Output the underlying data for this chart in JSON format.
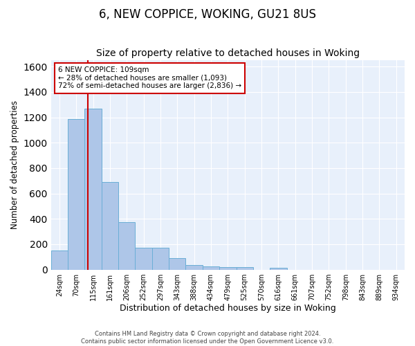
{
  "title": "6, NEW COPPICE, WOKING, GU21 8US",
  "subtitle": "Size of property relative to detached houses in Woking",
  "xlabel": "Distribution of detached houses by size in Woking",
  "ylabel": "Number of detached properties",
  "categories": [
    "24sqm",
    "70sqm",
    "115sqm",
    "161sqm",
    "206sqm",
    "252sqm",
    "297sqm",
    "343sqm",
    "388sqm",
    "434sqm",
    "479sqm",
    "525sqm",
    "570sqm",
    "616sqm",
    "661sqm",
    "707sqm",
    "752sqm",
    "798sqm",
    "843sqm",
    "889sqm",
    "934sqm"
  ],
  "values": [
    148,
    1185,
    1270,
    690,
    375,
    170,
    170,
    90,
    35,
    25,
    20,
    20,
    0,
    15,
    0,
    0,
    0,
    0,
    0,
    0,
    0
  ],
  "bar_color": "#aec6e8",
  "bar_edge_color": "#6aaed6",
  "vline_color": "#cc0000",
  "vline_x_index": 2.0,
  "annotation_text": "6 NEW COPPICE: 109sqm\n← 28% of detached houses are smaller (1,093)\n72% of semi-detached houses are larger (2,836) →",
  "annotation_box_color": "#ffffff",
  "annotation_box_edge": "#cc0000",
  "footer_line1": "Contains HM Land Registry data © Crown copyright and database right 2024.",
  "footer_line2": "Contains public sector information licensed under the Open Government Licence v3.0.",
  "ylim": [
    0,
    1650
  ],
  "plot_background": "#e8f0fb",
  "title_fontsize": 12,
  "subtitle_fontsize": 10,
  "tick_label_fontsize": 7,
  "ylabel_fontsize": 8.5,
  "xlabel_fontsize": 9,
  "footer_fontsize": 6.0
}
